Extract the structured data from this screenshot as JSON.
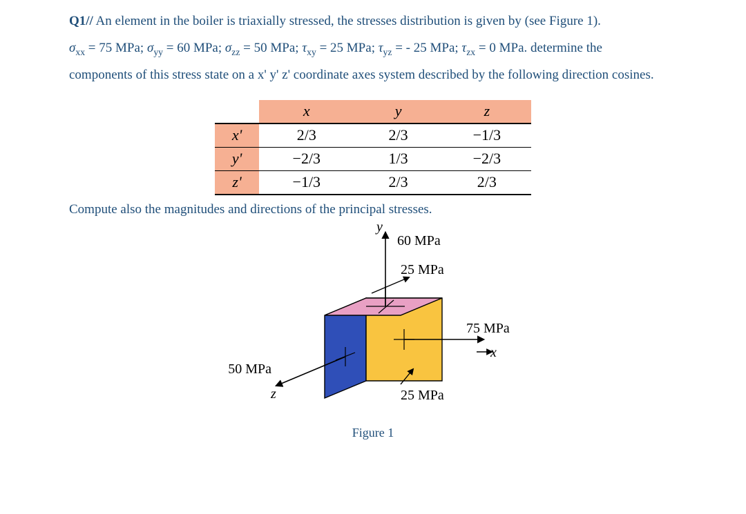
{
  "problem": {
    "label": "Q1//",
    "sentence_a": "An element in the boiler is triaxially stressed, the stresses distribution is given by (see Figure 1).",
    "stresses_line_html": "σ<sub>xx</sub> = 75 MPa; σ<sub>yy</sub> = 60 MPa; σ<sub>zz</sub> = 50 MPa; τ<sub>xy</sub> = 25 MPa; τ<sub>yz</sub> = - 25 MPa; τ<sub>zx</sub> = 0 MPa. determine the",
    "sentence_b": "components of this stress state on a x' y' z' coordinate axes system described by the following direction cosines.",
    "compute_line": "Compute also the magnitudes and directions of the principal stresses.",
    "stresses": {
      "sxx": "75 MPa",
      "syy": "60 MPa",
      "szz": "50 MPa",
      "txy": "25 MPa",
      "tyz": "- 25 MPa",
      "tzx": "0 MPa"
    }
  },
  "direction_cosines_table": {
    "columns": [
      "",
      "x",
      "y",
      "z"
    ],
    "rows": [
      [
        "x'",
        "2/3",
        "2/3",
        "−1/3"
      ],
      [
        "y'",
        "−2/3",
        "1/3",
        "−2/3"
      ],
      [
        "z'",
        "−1/3",
        "2/3",
        "2/3"
      ]
    ],
    "col_widths_pct": [
      14,
      30,
      28,
      28
    ],
    "header_fill": "#f6b093",
    "rowhead_fill": "#f6b093",
    "border_color": "#000000",
    "fontsize": 22
  },
  "figure": {
    "caption": "Figure 1",
    "type": "infographic",
    "axes": {
      "x": "x",
      "y": "y",
      "z": "z"
    },
    "labels": {
      "sigma_y": "60 MPa",
      "tau_top": "25 MPa",
      "sigma_x": "75 MPa",
      "x_axis": "x",
      "sigma_z": "50 MPa",
      "tau_bottom": "25 MPa",
      "y_axis": "y",
      "z_axis": "z"
    },
    "colors": {
      "top_face": "#e9a0c4",
      "front_face": "#f9c440",
      "left_face": "#2f4fb8",
      "edge": "#000000",
      "arrow": "#000000",
      "background": "#ffffff"
    },
    "label_fontsize": 20
  },
  "colors": {
    "text_primary": "#1f4e79",
    "background": "#ffffff"
  }
}
